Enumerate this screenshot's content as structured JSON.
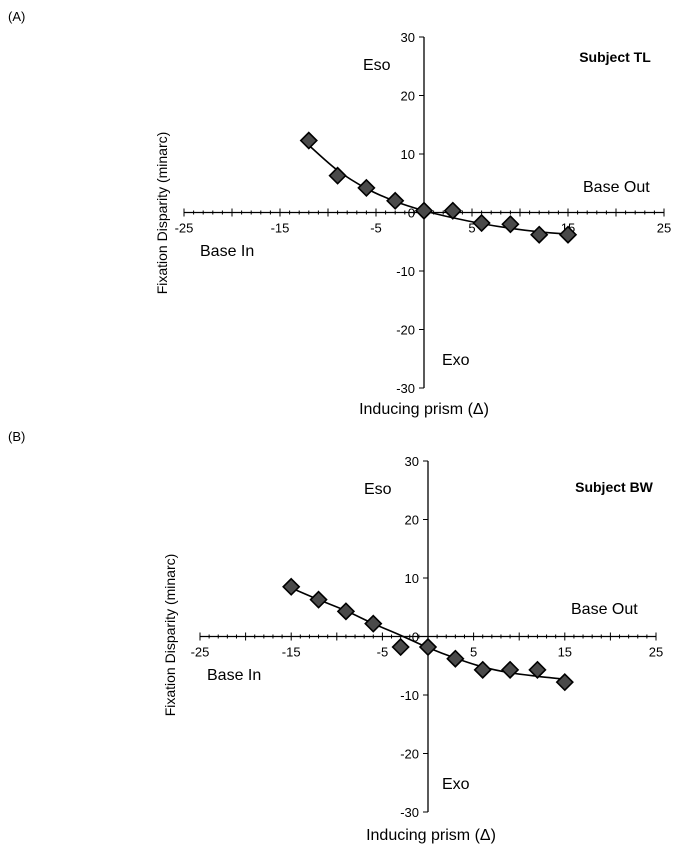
{
  "chart_data": [
    {
      "panel_label": "(A)",
      "type": "scatter",
      "title": "Subject  TL",
      "xlabel": "Inducing prism (Δ)",
      "ylabel": "Fixation Disparity (minarc)",
      "xlim": [
        -25,
        25
      ],
      "ylim": [
        -30,
        30
      ],
      "x_ticks": [
        -25,
        -15,
        -5,
        5,
        15,
        25
      ],
      "x_tick_labels": [
        "-25",
        "-15",
        "-5",
        "5",
        "15",
        "25"
      ],
      "y_ticks": [
        30,
        20,
        10,
        0,
        -10,
        -20,
        -30
      ],
      "y_tick_labels": [
        "30",
        "20",
        "10",
        "0",
        "-10",
        "-20",
        "-30"
      ],
      "grid": false,
      "legend": false,
      "quadrant_labels": {
        "upper_left": "Eso",
        "lower_left": "Base In",
        "upper_right": "Base Out",
        "lower_right": "Exo"
      },
      "marker": "diamond",
      "series": [
        {
          "x": [
            -12,
            -9,
            -6,
            -3,
            0,
            3,
            6,
            9,
            12,
            15
          ],
          "y": [
            12.3,
            6.3,
            4.2,
            2.0,
            0.3,
            0.3,
            -1.8,
            -2.0,
            -3.8,
            -3.8
          ],
          "fit_curve": {
            "x": [
              -12,
              -9,
              -6,
              -3,
              0,
              3,
              6,
              9,
              12,
              15
            ],
            "y": [
              11.5,
              7.2,
              4.1,
              1.9,
              0.3,
              -0.9,
              -1.9,
              -2.7,
              -3.3,
              -3.7
            ]
          }
        }
      ]
    },
    {
      "panel_label": "(B)",
      "type": "scatter",
      "title": "Subject BW",
      "xlabel": "Inducing prism (Δ)",
      "ylabel": "Fixation Disparity (minarc)",
      "xlim": [
        -25,
        25
      ],
      "ylim": [
        -30,
        30
      ],
      "x_ticks": [
        -25,
        -15,
        -5,
        5,
        15,
        25
      ],
      "x_tick_labels": [
        "-25",
        "-15",
        "-5",
        "5",
        "15",
        "25"
      ],
      "y_ticks": [
        30,
        20,
        10,
        0,
        -10,
        -20,
        -30
      ],
      "y_tick_labels": [
        "30",
        "20",
        "10",
        "0",
        "-10",
        "-20",
        "-30"
      ],
      "grid": false,
      "legend": false,
      "quadrant_labels": {
        "upper_left": "Eso",
        "lower_left": "Base In",
        "upper_right": "Base Out",
        "lower_right": "Exo"
      },
      "marker": "diamond",
      "series": [
        {
          "x": [
            -15,
            -12,
            -9,
            -6,
            -3,
            0,
            3,
            6,
            9,
            12,
            15
          ],
          "y": [
            8.5,
            6.3,
            4.3,
            2.2,
            -1.8,
            -1.8,
            -3.8,
            -5.7,
            -5.7,
            -5.7,
            -7.8
          ],
          "fit_curve": {
            "x": [
              -15,
              -12,
              -9,
              -6,
              -3,
              0,
              3,
              6,
              9,
              12,
              15
            ],
            "y": [
              8.3,
              6.3,
              4.4,
              2.2,
              0.2,
              -1.9,
              -3.7,
              -5.2,
              -6.2,
              -6.8,
              -7.3
            ]
          }
        }
      ]
    }
  ]
}
